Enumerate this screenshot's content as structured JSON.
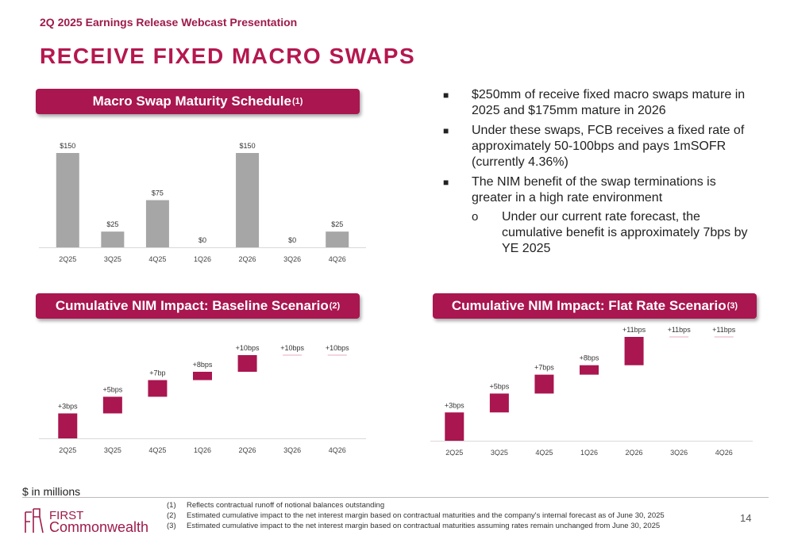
{
  "header": {
    "subtitle": "2Q 2025 Earnings Release Webcast Presentation",
    "title": "RECEIVE FIXED MACRO SWAPS"
  },
  "panels": {
    "maturity": {
      "title": "Macro Swap Maturity Schedule",
      "sup": "(1)"
    },
    "baseline": {
      "title": "Cumulative NIM Impact: Baseline Scenario",
      "sup": "(2)"
    },
    "flat": {
      "title": "Cumulative NIM Impact: Flat Rate Scenario",
      "sup": "(3)"
    }
  },
  "bullets": [
    {
      "marker": "■",
      "text": "$250mm of receive fixed macro swaps mature in 2025 and $175mm mature in 2026"
    },
    {
      "marker": "■",
      "text": "Under these swaps, FCB receives a fixed rate of approximately 50-100bps and pays 1mSOFR (currently 4.36%)"
    },
    {
      "marker": "■",
      "text": "The NIM benefit of the swap terminations is greater in a high rate environment"
    },
    {
      "marker": "o",
      "text": "Under our current rate forecast, the cumulative benefit is approximately 7bps by YE 2025",
      "sub": true
    }
  ],
  "colors": {
    "accent": "#a91650",
    "bar_gray": "#a6a6a6",
    "title": "#b5174f"
  },
  "chart_data": [
    {
      "type": "bar",
      "name": "maturity",
      "categories": [
        "2Q25",
        "3Q25",
        "4Q25",
        "1Q26",
        "2Q26",
        "3Q26",
        "4Q26"
      ],
      "values": [
        150,
        25,
        75,
        0,
        150,
        0,
        25
      ],
      "labels": [
        "$150",
        "$25",
        "$75",
        "$0",
        "$150",
        "$0",
        "$25"
      ],
      "ylim": [
        0,
        150
      ]
    },
    {
      "type": "bar",
      "subtype": "waterfall",
      "name": "baseline",
      "categories": [
        "2Q25",
        "3Q25",
        "4Q25",
        "1Q26",
        "2Q26",
        "3Q26",
        "4Q26"
      ],
      "cumulative": [
        3,
        5,
        7,
        8,
        10,
        10,
        10
      ],
      "labels": [
        "+3bps",
        "+5bps",
        "+7bp",
        "+8bps",
        "+10bps",
        "+10bps",
        "+10bps"
      ],
      "ylim": [
        0,
        10
      ]
    },
    {
      "type": "bar",
      "subtype": "waterfall",
      "name": "flat",
      "categories": [
        "2Q25",
        "3Q25",
        "4Q25",
        "1Q26",
        "2Q26",
        "3Q26",
        "4Q26"
      ],
      "cumulative": [
        3,
        5,
        7,
        8,
        11,
        11,
        11
      ],
      "labels": [
        "+3bps",
        "+5bps",
        "+7bps",
        "+8bps",
        "+11bps",
        "+11bps",
        "+11bps"
      ],
      "ylim": [
        0,
        11
      ]
    }
  ],
  "footer": {
    "units": "$ in millions",
    "footnotes": [
      {
        "num": "(1)",
        "text": "Reflects contractual runoff of notional balances outstanding"
      },
      {
        "num": "(2)",
        "text": "Estimated cumulative impact to the net interest margin based on contractual maturities and the company's internal forecast as of June 30, 2025"
      },
      {
        "num": "(3)",
        "text": "Estimated cumulative impact to the net interest margin based on contractual maturities assuming rates remain unchanged from June 30, 2025"
      }
    ],
    "page": "14",
    "logo_line1": "FIRST",
    "logo_line2": "Commonwealth"
  }
}
